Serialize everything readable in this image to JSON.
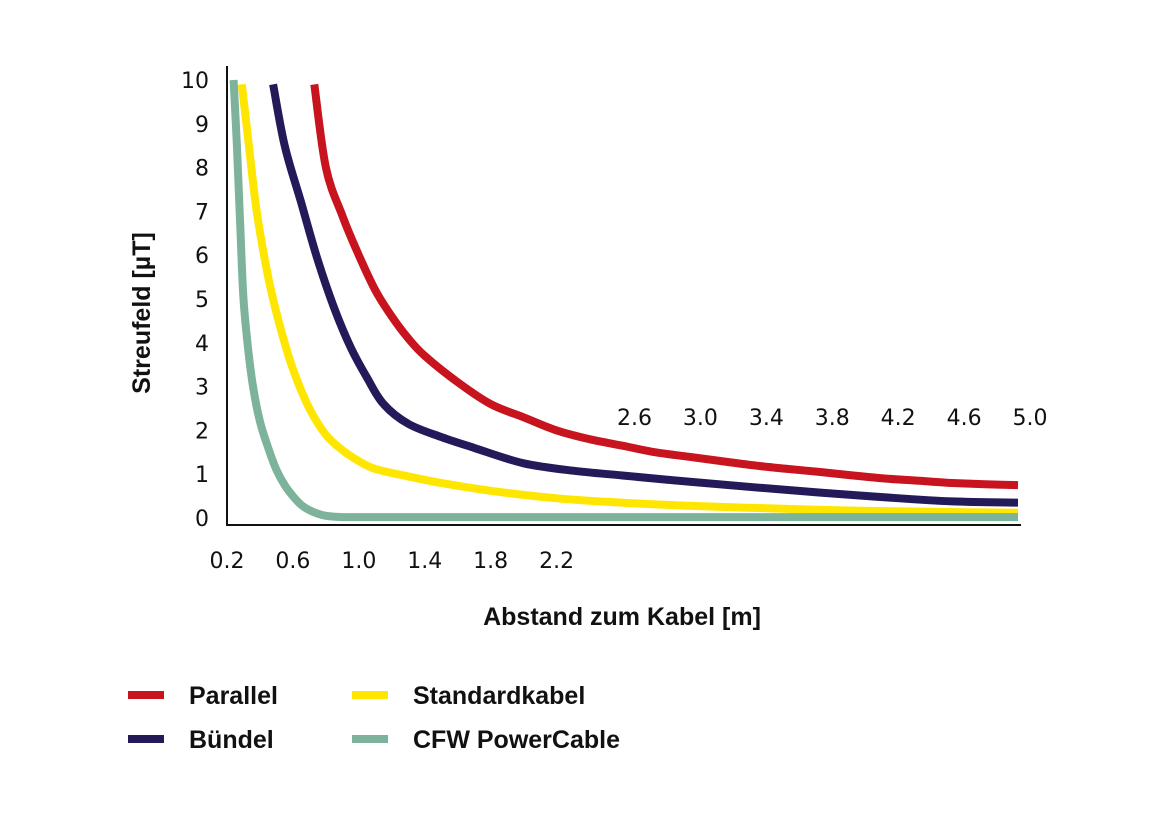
{
  "chart_data": {
    "type": "line",
    "title": "",
    "xlabel": "Abstand zum Kabel [m]",
    "ylabel": "Streufeld [µT]",
    "xlim": [
      0.2,
      5.0
    ],
    "ylim": [
      0,
      10
    ],
    "x_tick_labels": [
      "0.2",
      "0.6",
      "1.0",
      "1.4",
      "1.8",
      "2.2",
      "2.6",
      "3.0",
      "3.4",
      "3.8",
      "4.2",
      "4.6",
      "5.0"
    ],
    "y_tick_labels": [
      "0",
      "1",
      "2",
      "3",
      "4",
      "5",
      "6",
      "7",
      "8",
      "9",
      "10"
    ],
    "grid": false,
    "legend_position": "bottom-left",
    "series": [
      {
        "name": "Parallel",
        "color": "#c8141e",
        "x": [
          0.73,
          0.8,
          0.9,
          1.0,
          1.1,
          1.2,
          1.3,
          1.4,
          1.6,
          1.8,
          2.0,
          2.2,
          2.4,
          2.6,
          2.8,
          3.0,
          3.2,
          3.4,
          3.6,
          3.8,
          4.0,
          4.2,
          4.4,
          4.6,
          4.8,
          5.0
        ],
        "y": [
          9.9,
          8.0,
          6.9,
          6.0,
          5.2,
          4.6,
          4.1,
          3.7,
          3.1,
          2.6,
          2.3,
          2.0,
          1.8,
          1.65,
          1.5,
          1.4,
          1.3,
          1.2,
          1.12,
          1.05,
          0.97,
          0.9,
          0.85,
          0.8,
          0.77,
          0.75
        ]
      },
      {
        "name": "Bündel",
        "color": "#231a59",
        "x": [
          0.48,
          0.55,
          0.65,
          0.75,
          0.85,
          0.95,
          1.05,
          1.15,
          1.3,
          1.5,
          1.7,
          2.0,
          2.3,
          2.6,
          3.0,
          3.4,
          3.8,
          4.2,
          4.6,
          5.0
        ],
        "y": [
          9.9,
          8.5,
          7.2,
          5.9,
          4.8,
          3.9,
          3.2,
          2.6,
          2.15,
          1.85,
          1.6,
          1.25,
          1.08,
          0.97,
          0.83,
          0.7,
          0.58,
          0.47,
          0.38,
          0.35
        ]
      },
      {
        "name": "Standardkabel",
        "color": "#ffe600",
        "x": [
          0.29,
          0.33,
          0.38,
          0.45,
          0.52,
          0.6,
          0.7,
          0.8,
          0.9,
          1.0,
          1.1,
          1.3,
          1.5,
          1.8,
          2.2,
          2.6,
          3.0,
          3.5,
          4.0,
          4.5,
          5.0
        ],
        "y": [
          9.9,
          8.6,
          7.0,
          5.5,
          4.4,
          3.4,
          2.5,
          1.9,
          1.55,
          1.3,
          1.12,
          0.95,
          0.8,
          0.62,
          0.45,
          0.35,
          0.28,
          0.22,
          0.17,
          0.14,
          0.12
        ]
      },
      {
        "name": "CFW PowerCable",
        "color": "#7db39b",
        "x": [
          0.24,
          0.26,
          0.28,
          0.3,
          0.33,
          0.36,
          0.4,
          0.45,
          0.5,
          0.55,
          0.6,
          0.65,
          0.7,
          0.75,
          0.8,
          0.9,
          1.0,
          1.5,
          2.0,
          3.0,
          4.0,
          5.0
        ],
        "y": [
          10.0,
          8.5,
          6.7,
          5.0,
          3.8,
          2.95,
          2.2,
          1.6,
          1.1,
          0.75,
          0.5,
          0.3,
          0.18,
          0.1,
          0.05,
          0.02,
          0.02,
          0.02,
          0.02,
          0.02,
          0.02,
          0.02
        ]
      }
    ]
  },
  "legend": [
    {
      "name": "Parallel",
      "color": "#c8141e"
    },
    {
      "name": "Bündel",
      "color": "#231a59"
    },
    {
      "name": "Standardkabel",
      "color": "#ffe600"
    },
    {
      "name": "CFW PowerCable",
      "color": "#7db39b"
    }
  ]
}
